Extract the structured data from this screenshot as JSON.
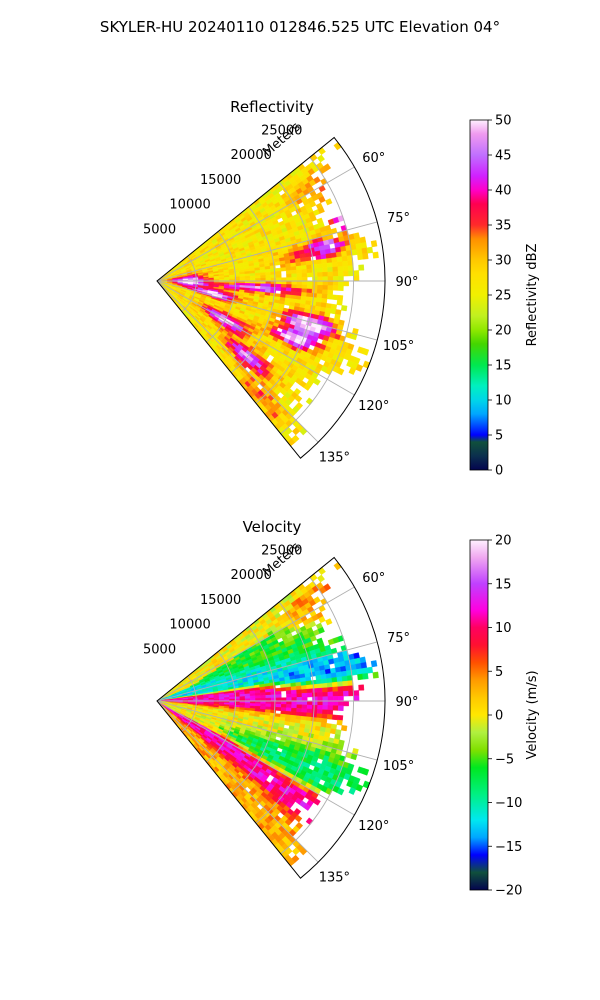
{
  "figure": {
    "suptitle": "SKYLER-HU  20240110  012846.525 UTC Elevation 04°"
  },
  "panels": [
    {
      "title": "Reflectivity",
      "radial_axis_label": "Meters",
      "radial_ticks": [
        "5000",
        "10000",
        "15000",
        "20000",
        "25000"
      ],
      "angle_ticks": [
        "60°",
        "75°",
        "90°",
        "105°",
        "120°",
        "135°"
      ],
      "colorbar": {
        "label": "Reflectivity dBZ",
        "ticks": [
          "0",
          "5",
          "10",
          "15",
          "20",
          "25",
          "30",
          "35",
          "40",
          "45",
          "50"
        ]
      }
    },
    {
      "title": "Velocity",
      "radial_axis_label": "Meters",
      "radial_ticks": [
        "5000",
        "10000",
        "15000",
        "20000",
        "25000"
      ],
      "angle_ticks": [
        "60°",
        "75°",
        "90°",
        "105°",
        "120°",
        "135°"
      ],
      "colorbar": {
        "label": "Velocity (m/s)",
        "ticks": [
          "−20",
          "−15",
          "−10",
          "−5",
          "0",
          "5",
          "10",
          "15",
          "20"
        ]
      }
    }
  ],
  "chart_data": [
    {
      "type": "heatmap",
      "projection": "polar sector",
      "title": "Reflectivity",
      "radial_label": "Meters",
      "theta_range_deg": [
        51,
        141
      ],
      "r_range_m": [
        0,
        29000
      ],
      "theta_ticks_deg": [
        60,
        75,
        90,
        105,
        120,
        135
      ],
      "r_ticks_m": [
        5000,
        10000,
        15000,
        20000,
        25000
      ],
      "colorbar_label": "Reflectivity dBZ",
      "colorbar_range": [
        0,
        50
      ],
      "grid": true,
      "field": {
        "background_dbz": 27,
        "features": [
          {
            "theta": 90,
            "r": 4000,
            "dbz": 40,
            "dtheta": 10,
            "dr": 2500
          },
          {
            "theta": 72,
            "r": 25500,
            "dbz": 37,
            "dtheta": 3,
            "dr": 2200
          },
          {
            "theta": 79,
            "r": 22000,
            "dbz": 36,
            "dtheta": 3,
            "dr": 2500
          },
          {
            "theta": 94,
            "r": 13000,
            "dbz": 34,
            "dtheta": 3,
            "dr": 6000
          },
          {
            "theta": 106,
            "r": 20000,
            "dbz": 42,
            "dtheta": 4,
            "dr": 3500
          },
          {
            "theta": 113,
            "r": 19000,
            "dbz": 40,
            "dtheta": 3,
            "dr": 3000
          },
          {
            "theta": 103,
            "r": 7500,
            "dbz": 38,
            "dtheta": 4,
            "dr": 3000
          },
          {
            "theta": 120,
            "r": 10000,
            "dbz": 35,
            "dtheta": 5,
            "dr": 4000
          },
          {
            "theta": 130,
            "r": 15000,
            "dbz": 33,
            "dtheta": 4,
            "dr": 4000
          },
          {
            "theta": 60,
            "r": 23000,
            "dbz": 20,
            "dtheta": 8,
            "dr": 5000
          },
          {
            "theta": 80,
            "r": 18000,
            "dbz": 22,
            "dtheta": 5,
            "dr": 4000
          },
          {
            "theta": 138,
            "r": 20000,
            "dbz": 22,
            "dtheta": 4,
            "dr": 5000
          }
        ]
      }
    },
    {
      "type": "heatmap",
      "projection": "polar sector",
      "title": "Velocity",
      "radial_label": "Meters",
      "theta_range_deg": [
        51,
        141
      ],
      "r_range_m": [
        0,
        29000
      ],
      "theta_ticks_deg": [
        60,
        75,
        90,
        105,
        120,
        135
      ],
      "r_ticks_m": [
        5000,
        10000,
        15000,
        20000,
        25000
      ],
      "colorbar_label": "Velocity (m/s)",
      "colorbar_range": [
        -20,
        20
      ],
      "grid": true,
      "field": {
        "features": [
          {
            "theta": 90,
            "r": 14000,
            "ms": 12,
            "dtheta": 5,
            "dr": 16000
          },
          {
            "theta": 102,
            "r": 10000,
            "ms": 0,
            "dtheta": 6,
            "dr": 15000
          },
          {
            "theta": 112,
            "r": 20000,
            "ms": -8,
            "dtheta": 6,
            "dr": 6000
          },
          {
            "theta": 125,
            "r": 15000,
            "ms": 12,
            "dtheta": 4,
            "dr": 12000
          },
          {
            "theta": 135,
            "r": 12000,
            "ms": 3,
            "dtheta": 5,
            "dr": 12000
          },
          {
            "theta": 75,
            "r": 8000,
            "ms": -12,
            "dtheta": 4,
            "dr": 10000
          },
          {
            "theta": 68,
            "r": 19000,
            "ms": -6,
            "dtheta": 5,
            "dr": 8000
          },
          {
            "theta": 80,
            "r": 22000,
            "ms": -14,
            "dtheta": 4,
            "dr": 5000
          },
          {
            "theta": 62,
            "r": 25000,
            "ms": 4,
            "dtheta": 5,
            "dr": 4000
          }
        ]
      }
    }
  ],
  "colors": {
    "reflectivity_stops": [
      [
        0,
        "#04044f"
      ],
      [
        2,
        "#0b2f4e"
      ],
      [
        4,
        "#10503c"
      ],
      [
        5,
        "#0000ff"
      ],
      [
        8,
        "#00a6ff"
      ],
      [
        10,
        "#00d6e8"
      ],
      [
        12,
        "#00f0c0"
      ],
      [
        15,
        "#00e84f"
      ],
      [
        18,
        "#44d600"
      ],
      [
        20,
        "#8fe800"
      ],
      [
        22,
        "#c0f020"
      ],
      [
        25,
        "#f0f000"
      ],
      [
        28,
        "#ffe000"
      ],
      [
        30,
        "#ffc800"
      ],
      [
        33,
        "#ff9000"
      ],
      [
        35,
        "#ff2a2a"
      ],
      [
        38,
        "#ff0050"
      ],
      [
        40,
        "#ff00c8"
      ],
      [
        42,
        "#d020ff"
      ],
      [
        45,
        "#c070ff"
      ],
      [
        48,
        "#f09aef"
      ],
      [
        50,
        "#fff0ff"
      ]
    ],
    "velocity_stops": [
      [
        -20,
        "#04044f"
      ],
      [
        -18,
        "#10503c"
      ],
      [
        -16,
        "#0000ff"
      ],
      [
        -14,
        "#00a6ff"
      ],
      [
        -12,
        "#00e8f0"
      ],
      [
        -9,
        "#00f080"
      ],
      [
        -6,
        "#00e820"
      ],
      [
        -4,
        "#80e000"
      ],
      [
        -2,
        "#b0f040"
      ],
      [
        0,
        "#ffe800"
      ],
      [
        2,
        "#ffc800"
      ],
      [
        4,
        "#ff9a00"
      ],
      [
        6,
        "#ff5000"
      ],
      [
        8,
        "#ff1030"
      ],
      [
        10,
        "#ff0060"
      ],
      [
        12,
        "#ff00e0"
      ],
      [
        15,
        "#c040ff"
      ],
      [
        18,
        "#f0a8f0"
      ],
      [
        20,
        "#fff0ff"
      ]
    ]
  }
}
